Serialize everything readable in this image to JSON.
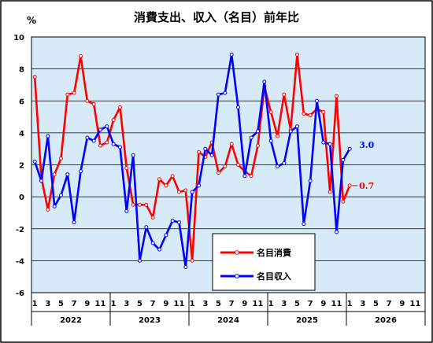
{
  "chart_data": {
    "type": "line",
    "title": "消費支出、収入（名目）前年比",
    "ylabel": "%",
    "ylim": [
      -6,
      10
    ],
    "yticks": [
      -6,
      -4,
      -2,
      0,
      2,
      4,
      6,
      8,
      10
    ],
    "years": [
      "2022",
      "2023",
      "2024",
      "2025",
      "2026"
    ],
    "month_ticks": [
      "1",
      "3",
      "5",
      "7",
      "9",
      "11"
    ],
    "grid": "horizontal",
    "background": "#d6ebf7",
    "legend_position": "bottom-center",
    "series": [
      {
        "name": "名目消費",
        "color": "#ff0000",
        "values": [
          7.5,
          1.2,
          -0.8,
          1.4,
          2.4,
          6.4,
          6.5,
          8.8,
          6.0,
          5.8,
          3.2,
          3.4,
          4.8,
          5.6,
          1.8,
          -0.5,
          -0.5,
          -0.5,
          -1.3,
          1.1,
          0.7,
          1.3,
          0.3,
          0.4,
          -4.0,
          2.8,
          2.5,
          3.4,
          1.5,
          1.9,
          3.3,
          2.0,
          1.6,
          1.3,
          3.2,
          6.9,
          5.3,
          3.8,
          6.4,
          4.2,
          8.9,
          5.2,
          5.1,
          5.5,
          5.3,
          0.3,
          6.3,
          -0.3,
          0.7
        ],
        "end_label": "0.7"
      },
      {
        "name": "名目収入",
        "color": "#0000ff",
        "values": [
          2.2,
          1.0,
          3.8,
          -0.6,
          0.1,
          1.4,
          -1.6,
          1.6,
          3.7,
          3.5,
          4.2,
          4.4,
          3.3,
          3.1,
          -0.9,
          2.6,
          -4.0,
          -1.9,
          -2.9,
          -3.3,
          -2.4,
          -1.5,
          -1.6,
          -4.4,
          0.3,
          0.7,
          3.0,
          2.6,
          6.4,
          6.5,
          8.9,
          5.6,
          1.3,
          3.7,
          4.1,
          7.2,
          3.5,
          1.9,
          2.1,
          4.1,
          4.4,
          -1.7,
          1.0,
          6.0,
          3.4,
          3.3,
          -2.2,
          2.3,
          3.0
        ],
        "end_label": "3.0"
      }
    ]
  }
}
